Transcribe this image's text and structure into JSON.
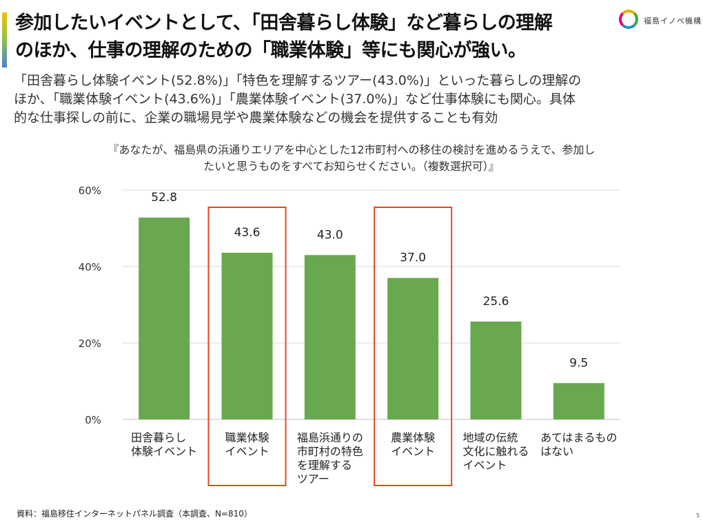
{
  "header": {
    "title_lines": [
      "参加したいイベントとして、「田舎暮らし体験」など暮らしの理解",
      "のほか、仕事の理解のための「職業体験」等にも関心が強い。"
    ],
    "logo_text": "福島イノベ機構"
  },
  "description_lines": [
    "「田舎暮らし体験イベント(52.8%)」「特色を理解するツアー(43.0%)」といった暮らしの理解の",
    "ほか、「職業体験イベント(43.6%)」「農業体験イベント(37.0%)」など仕事体験にも関心。具体",
    "的な仕事探しの前に、企業の職場見学や農業体験などの機会を提供することも有効"
  ],
  "question_lines": [
    "『あなたが、福島県の浜通りエリアを中心とした12市町村への移住の検討を進めるうえで、参加し",
    "たいと思うものをすべてお知らせください。（複数選択可）』"
  ],
  "source": "資料：福島移住インターネットパネル調査（本調査、N=810）",
  "page_number": "5",
  "colors": {
    "bar": "#6aa84f",
    "highlight_box": "#e8441f",
    "grid": "#d9d9d9",
    "accent_bar": [
      "#f2c200",
      "#8bc34a",
      "#4a7fd4"
    ]
  },
  "chart_data": {
    "type": "bar",
    "categories": [
      [
        "田舎暮らし",
        "体験イベント"
      ],
      [
        "職業体験",
        "イベント"
      ],
      [
        "福島浜通りの",
        "市町村の特色",
        "を理解する",
        "ツアー"
      ],
      [
        "農業体験",
        "イベント"
      ],
      [
        "地域の伝統",
        "文化に触れる",
        "イベント"
      ],
      [
        "あてはまるもの",
        "はない"
      ]
    ],
    "values": [
      52.8,
      43.6,
      43.0,
      37.0,
      25.6,
      9.5
    ],
    "value_labels": [
      "52.8",
      "43.6",
      "43.0",
      "37.0",
      "25.6",
      "9.5"
    ],
    "highlighted": [
      1,
      3
    ],
    "ylim": [
      0,
      60
    ],
    "yticks": [
      0,
      20,
      40,
      60
    ],
    "ytick_labels": [
      "0%",
      "20%",
      "40%",
      "60%"
    ],
    "grid": true,
    "legend": "none"
  }
}
